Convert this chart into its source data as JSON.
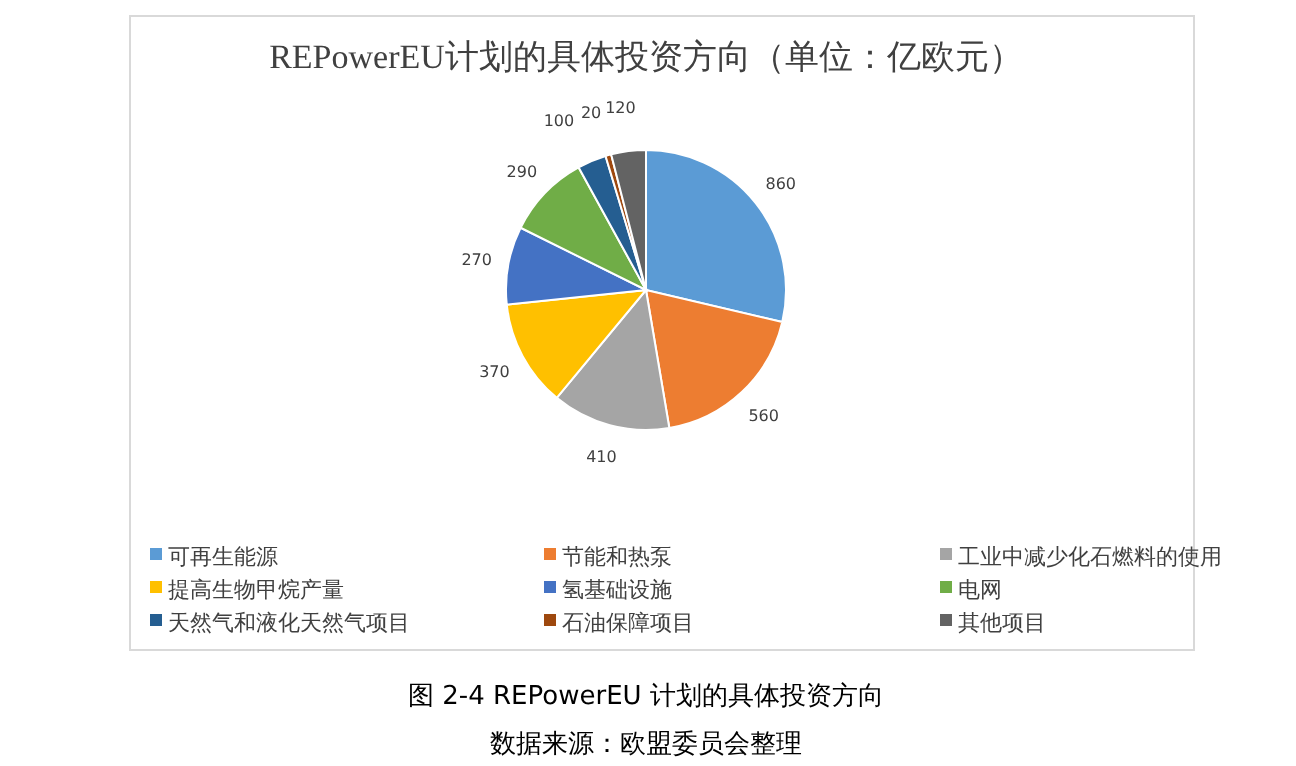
{
  "chart_data": {
    "type": "pie",
    "title": "REPowerEU计划的具体投资方向（单位：亿欧元）",
    "categories": [
      "可再生能源",
      "节能和热泵",
      "工业中减少化石燃料的使用",
      "提高生物甲烷产量",
      "氢基础设施",
      "电网",
      "天然气和液化天然气项目",
      "石油保障项目",
      "其他项目"
    ],
    "values": [
      860,
      560,
      410,
      370,
      270,
      290,
      100,
      20,
      120
    ],
    "colors": [
      "#5b9bd5",
      "#ed7d31",
      "#a5a5a5",
      "#ffc000",
      "#4472c4",
      "#70ad47",
      "#255e91",
      "#9e480e",
      "#636363"
    ],
    "data_labels": true,
    "legend": "bottom",
    "annotations": [
      "图 2-4 REPowerEU 计划的具体投资方向",
      "数据来源：欧盟委员会整理"
    ]
  }
}
